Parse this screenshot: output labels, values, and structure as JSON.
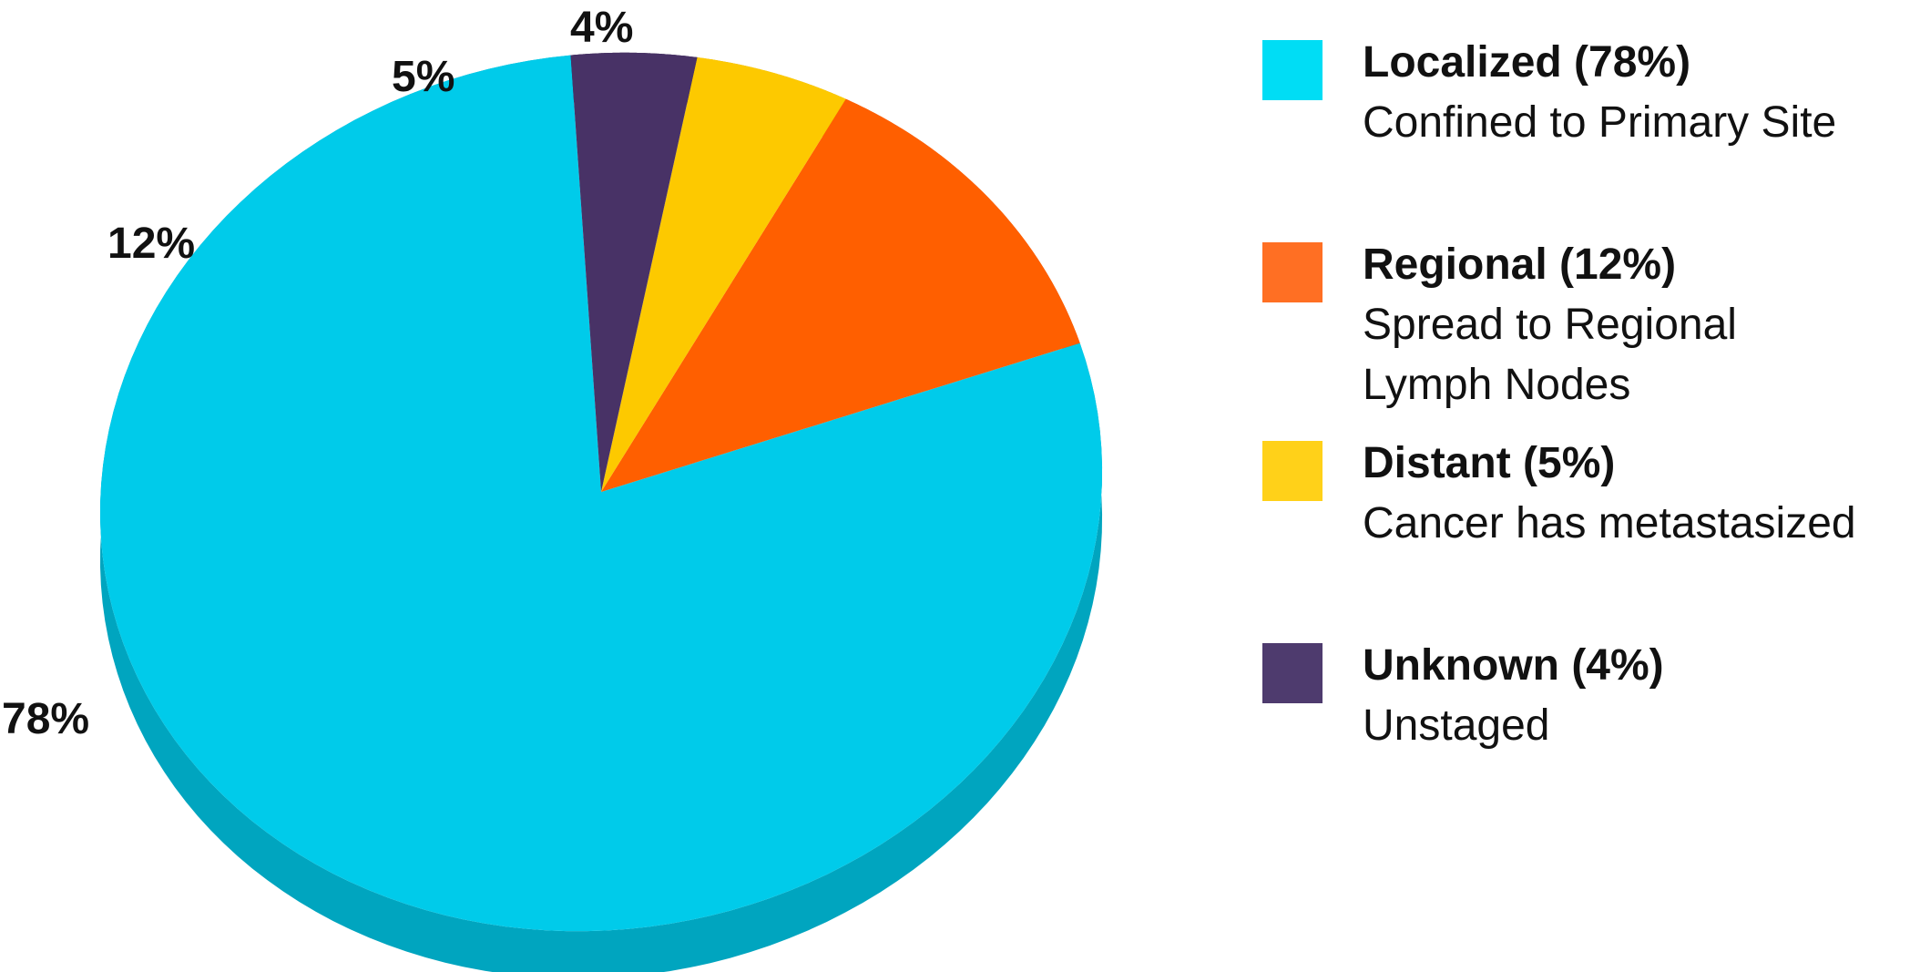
{
  "chart_data": {
    "type": "pie",
    "title": "",
    "style": "3d-tilted",
    "start_angle_deg": 85,
    "slices": [
      {
        "label": "78%",
        "value": 78,
        "color": "#00CBEA",
        "side_color": "#00A5BF",
        "legend_title": "Localized (78%)",
        "legend_desc": [
          "Confined to Primary Site"
        ],
        "legend_color": "#00DDF5"
      },
      {
        "label": "12%",
        "value": 12,
        "color": "#FF5F00",
        "side_color": "#C94A00",
        "legend_title": "Regional (12%)",
        "legend_desc": [
          "Spread to Regional",
          "Lymph Nodes"
        ],
        "legend_color": "#FF6F23"
      },
      {
        "label": "5%",
        "value": 5,
        "color": "#FDC900",
        "side_color": "#C9A000",
        "legend_title": "Distant (5%)",
        "legend_desc": [
          "Cancer has metastasized"
        ],
        "legend_color": "#FFD119"
      },
      {
        "label": "4%",
        "value": 4,
        "color": "#483266",
        "side_color": "#34244A",
        "legend_title": "Unknown (4%)",
        "legend_desc": [
          "Unstaged"
        ],
        "legend_color": "#4E3B6E"
      }
    ],
    "legend_position": "right"
  }
}
